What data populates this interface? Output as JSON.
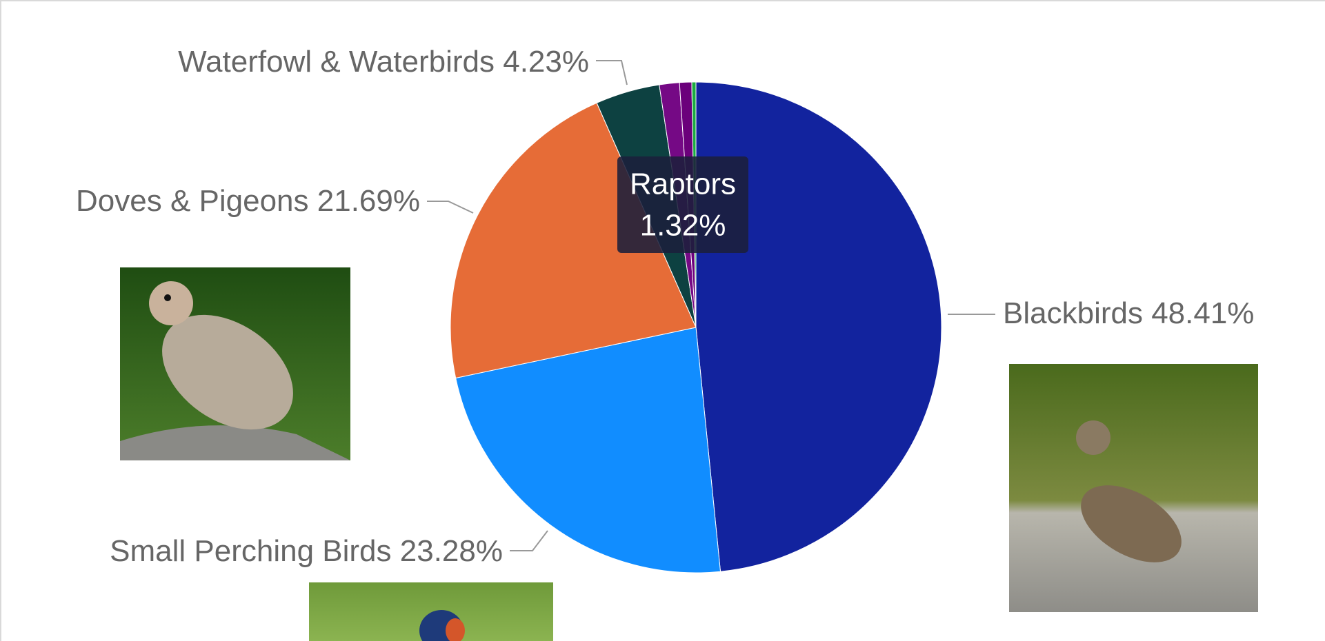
{
  "chart_data": {
    "type": "pie",
    "categories": [
      "Blackbirds",
      "Small Perching Birds",
      "Doves & Pigeons",
      "Waterfowl & Waterbirds",
      "Raptors",
      null,
      null
    ],
    "values": [
      48.41,
      23.28,
      21.69,
      4.23,
      1.32,
      0.8,
      0.27
    ],
    "value_labels": [
      "48.41%",
      "23.28%",
      "21.69%",
      "4.23%",
      "1.32%",
      null,
      null
    ],
    "colors": [
      "#12239E",
      "#118DFF",
      "#E66C37",
      "#0D4141",
      "#750985",
      "#6B007B",
      "#1AAB40"
    ],
    "tooltip_index": 4
  }
}
